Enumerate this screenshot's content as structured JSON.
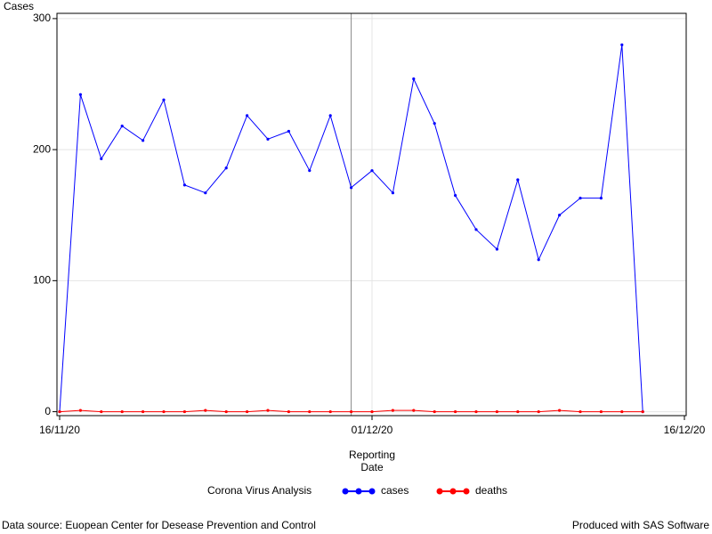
{
  "chart_data": {
    "type": "line",
    "ylabel": "Cases",
    "xlabel": "Reporting Date",
    "x": [
      "16/11/20",
      "17/11/20",
      "18/11/20",
      "19/11/20",
      "20/11/20",
      "21/11/20",
      "22/11/20",
      "23/11/20",
      "24/11/20",
      "25/11/20",
      "26/11/20",
      "27/11/20",
      "28/11/20",
      "29/11/20",
      "30/11/20",
      "01/12/20",
      "02/12/20",
      "03/12/20",
      "04/12/20",
      "05/12/20",
      "06/12/20",
      "07/12/20",
      "08/12/20",
      "09/12/20",
      "10/12/20",
      "11/12/20",
      "12/12/20",
      "13/12/20",
      "14/12/20"
    ],
    "series": [
      {
        "name": "cases",
        "color": "#0000ff",
        "values": [
          0,
          242,
          193,
          218,
          207,
          238,
          173,
          167,
          186,
          226,
          208,
          214,
          184,
          226,
          171,
          184,
          167,
          254,
          220,
          165,
          139,
          124,
          177,
          116,
          150,
          163,
          163,
          280,
          0
        ]
      },
      {
        "name": "deaths",
        "color": "#ff0000",
        "values": [
          0,
          1,
          0,
          0,
          0,
          0,
          0,
          1,
          0,
          0,
          1,
          0,
          0,
          0,
          0,
          0,
          1,
          1,
          0,
          0,
          0,
          0,
          0,
          0,
          1,
          0,
          0,
          0,
          0
        ]
      }
    ],
    "xlim": [
      "16/11/20",
      "16/12/20"
    ],
    "xticks": [
      "16/11/20",
      "01/12/20",
      "16/12/20"
    ],
    "ylim": [
      -3,
      304
    ],
    "yticks": [
      0,
      100,
      200,
      300
    ],
    "grid": true,
    "refline": "30/11/20",
    "legend_title": "Corona Virus Analysis",
    "footnote_left": "Data source: Euopean Center for Desease Prevention and Control",
    "footnote_right": "Produced with SAS Software"
  }
}
